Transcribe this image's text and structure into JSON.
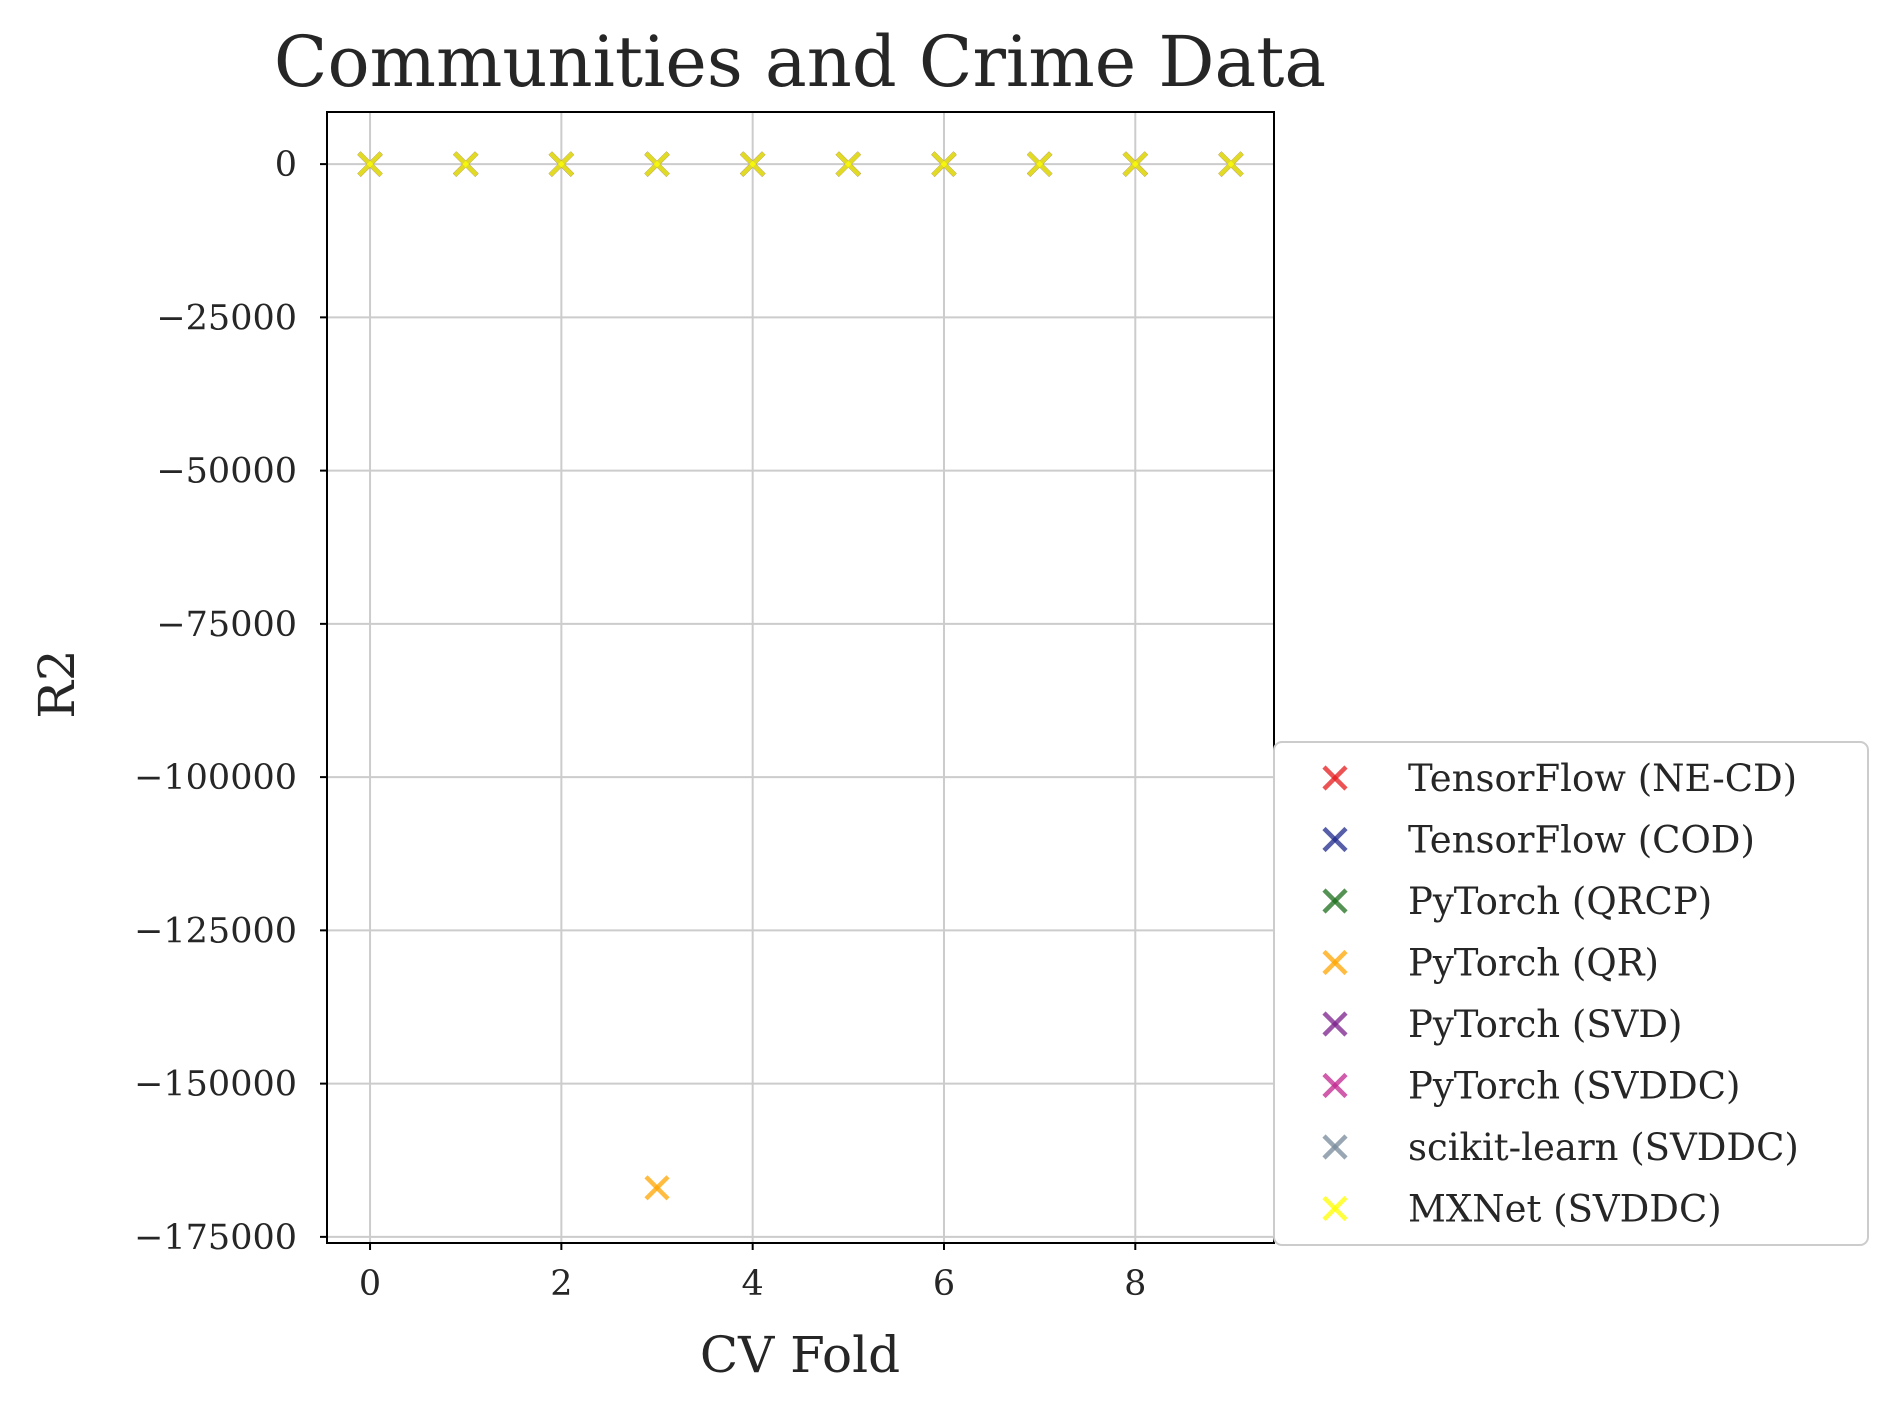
{
  "chart_data": {
    "type": "scatter",
    "title": "Communities and Crime Data",
    "xlabel": "CV Fold",
    "ylabel": "R2",
    "xlim": [
      -0.45,
      9.45
    ],
    "ylim": [
      -176000,
      8500
    ],
    "x_ticks": [
      0,
      2,
      4,
      6,
      8
    ],
    "x_tick_labels": [
      "0",
      "2",
      "4",
      "6",
      "8"
    ],
    "y_ticks": [
      0,
      -25000,
      -50000,
      -75000,
      -100000,
      -125000,
      -150000,
      -175000
    ],
    "y_tick_labels": [
      "0",
      "−25000",
      "−50000",
      "−75000",
      "−100000",
      "−125000",
      "−150000",
      "−175000"
    ],
    "grid": true,
    "legend_position": "lower right, outside plot",
    "marker": "x",
    "x": [
      0,
      1,
      2,
      3,
      4,
      5,
      6,
      7,
      8,
      9
    ],
    "series": [
      {
        "name": "TensorFlow (NE-CD)",
        "color": "#e41a1c",
        "values": [
          0,
          0,
          0,
          0,
          0,
          0,
          0,
          0,
          0,
          0
        ]
      },
      {
        "name": "TensorFlow (COD)",
        "color": "#1f2a8c",
        "values": [
          0,
          0,
          0,
          0,
          0,
          0,
          0,
          0,
          0,
          0
        ]
      },
      {
        "name": "PyTorch (QRCP)",
        "color": "#1b6f1b",
        "values": [
          0,
          0,
          0,
          0,
          0,
          0,
          0,
          0,
          0,
          0
        ]
      },
      {
        "name": "PyTorch (QR)",
        "color": "#ffa500",
        "values": [
          0,
          0,
          0,
          -167000,
          0,
          0,
          0,
          0,
          0,
          0
        ]
      },
      {
        "name": "PyTorch (SVD)",
        "color": "#7b1f8c",
        "values": [
          0,
          0,
          0,
          0,
          0,
          0,
          0,
          0,
          0,
          0
        ]
      },
      {
        "name": "PyTorch (SVDDC)",
        "color": "#c2258f",
        "values": [
          0,
          0,
          0,
          0,
          0,
          0,
          0,
          0,
          0,
          0
        ]
      },
      {
        "name": "scikit-learn (SVDDC)",
        "color": "#778899",
        "values": [
          0,
          0,
          0,
          0,
          0,
          0,
          0,
          0,
          0,
          0
        ]
      },
      {
        "name": "MXNet (SVDDC)",
        "color": "#ffff00",
        "values": [
          0,
          0,
          0,
          0,
          0,
          0,
          0,
          0,
          0,
          0
        ]
      }
    ]
  }
}
